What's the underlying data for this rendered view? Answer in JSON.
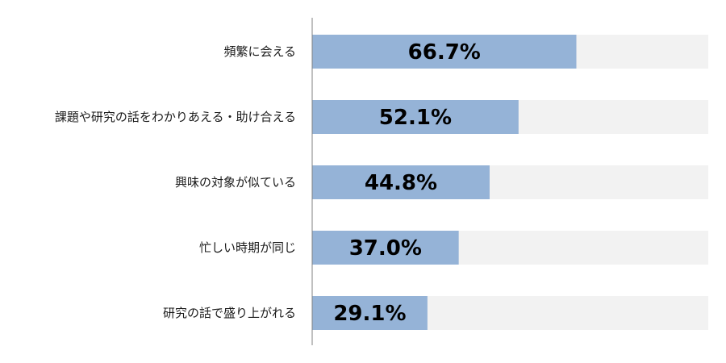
{
  "chart_data": {
    "type": "bar",
    "orientation": "horizontal",
    "categories": [
      "頻繁に会える",
      "課題や研究の話をわかりあえる・助け合える",
      "興味の対象が似ている",
      "忙しい時期が同じ",
      "研究の話で盛り上がれる"
    ],
    "values": [
      66.7,
      52.1,
      44.8,
      37.0,
      29.1
    ],
    "value_labels": [
      "66.7%",
      "52.1%",
      "44.8%",
      "37.0%",
      "29.1%"
    ],
    "xlim": [
      0,
      100
    ],
    "grid": false,
    "legend": "none",
    "title": "",
    "xlabel": "",
    "ylabel": ""
  },
  "colors": {
    "bar": "#95b3d7",
    "track": "#f2f2f2",
    "axis": "#808080",
    "text": "#1a1a1a",
    "value_text": "#000000"
  }
}
